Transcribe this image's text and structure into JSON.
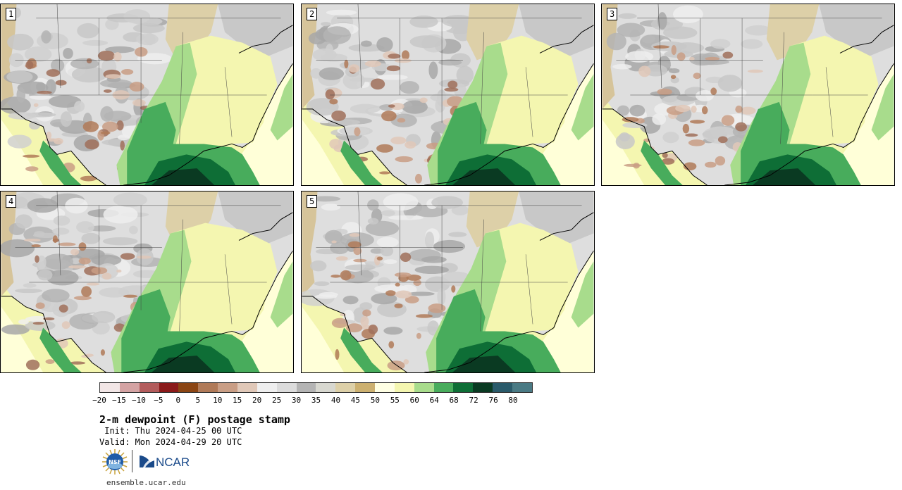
{
  "panels": [
    {
      "label": "1",
      "variant": 0
    },
    {
      "label": "2",
      "variant": 1
    },
    {
      "label": "3",
      "variant": 2
    },
    {
      "label": "4",
      "variant": 3
    },
    {
      "label": "5",
      "variant": 4
    }
  ],
  "colorbar": {
    "colors": [
      "#f2e6e6",
      "#d4a3a3",
      "#b35c5c",
      "#8b1a1a",
      "#8b4513",
      "#b07a58",
      "#c99e85",
      "#e0c8b8",
      "#efefef",
      "#dcdcdc",
      "#b4b4b4",
      "#d8d8d0",
      "#ddd0a8",
      "#ccb070",
      "#ffffe4",
      "#f4f6b0",
      "#a8dc8c",
      "#48ac5c",
      "#0e6e36",
      "#0a3a22",
      "#2a5a6a",
      "#4a7a84"
    ],
    "ticks": [
      "−20",
      "−15",
      "−10",
      "−5",
      "0",
      "5",
      "10",
      "15",
      "20",
      "25",
      "30",
      "35",
      "40",
      "45",
      "50",
      "55",
      "60",
      "64",
      "68",
      "72",
      "76",
      "80"
    ]
  },
  "title": "2-m dewpoint (F) postage stamp",
  "init": " Init: Thu 2024-04-25 00 UTC",
  "valid": "Valid: Mon 2024-04-29 20 UTC",
  "logos": {
    "nsf": "NSF",
    "ncar": "NCAR"
  },
  "site": "ensemble.ucar.edu"
}
